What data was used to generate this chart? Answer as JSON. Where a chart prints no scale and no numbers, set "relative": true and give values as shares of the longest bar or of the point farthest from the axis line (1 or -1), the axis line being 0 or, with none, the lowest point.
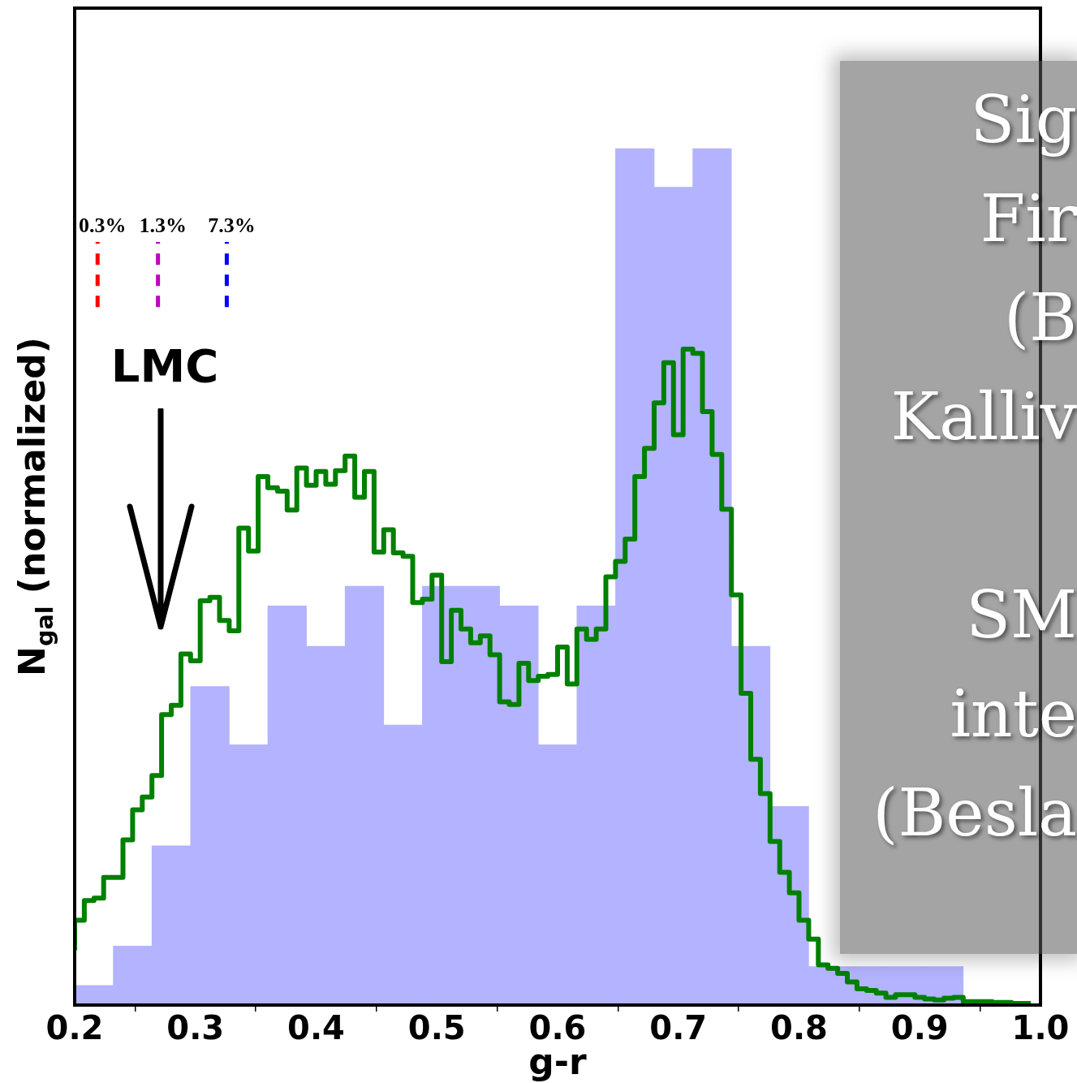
{
  "chart_data": {
    "type": "histogram",
    "xlabel": "g-r",
    "ylabel": "N$_{gal}$ (normalized)",
    "relative": true,
    "xlim": [
      0.2,
      1
    ],
    "xticks": [
      0.2,
      0.3,
      0.4,
      0.5,
      0.6,
      0.7,
      0.8,
      0.9,
      {
        "value": 1,
        "label": "1.0"
      }
    ],
    "bins": [
      0.2,
      0.232,
      0.264,
      0.296,
      0.328,
      0.36,
      0.392,
      0.424,
      0.456,
      0.488,
      0.52,
      0.552,
      0.584,
      0.616,
      0.648,
      0.68,
      0.712,
      0.744,
      0.776,
      0.808,
      0.84,
      0.872,
      0.904,
      0.936
    ],
    "series": [
      {
        "color": "#b3b3ff",
        "values": [
          0.023,
          0.069,
          0.186,
          0.372,
          0.304,
          0.466,
          0.419,
          0.489,
          0.327,
          0.489,
          0.489,
          0.466,
          0.304,
          0.466,
          1,
          0.955,
          1,
          0.419,
          0.232,
          0.045,
          0.045,
          0.045,
          0.045
        ]
      },
      {
        "type": "step",
        "color": "#008000",
        "x": [
          0.2,
          0.208,
          0.216,
          0.224,
          0.232,
          0.24,
          0.248,
          0.256,
          0.264,
          0.272,
          0.28,
          0.288,
          0.296,
          0.304,
          0.312,
          0.32,
          0.328,
          0.336,
          0.344,
          0.352,
          0.36,
          0.368,
          0.376,
          0.384,
          0.392,
          0.4,
          0.408,
          0.416,
          0.424,
          0.432,
          0.44,
          0.448,
          0.456,
          0.464,
          0.472,
          0.48,
          0.488,
          0.496,
          0.504,
          0.512,
          0.52,
          0.528,
          0.536,
          0.544,
          0.552,
          0.56,
          0.568,
          0.576,
          0.584,
          0.592,
          0.6,
          0.608,
          0.616,
          0.624,
          0.632,
          0.64,
          0.648,
          0.656,
          0.664,
          0.672,
          0.68,
          0.688,
          0.696,
          0.704,
          0.712,
          0.72,
          0.728,
          0.736,
          0.744,
          0.752,
          0.76,
          0.768,
          0.776,
          0.784,
          0.792,
          0.8,
          0.808,
          0.816,
          0.824,
          0.832,
          0.84,
          0.848,
          0.856,
          0.864,
          0.872,
          0.88,
          0.888,
          0.896,
          0.904,
          0.912,
          0.92,
          0.928,
          0.936,
          0.944,
          0.952,
          0.96,
          0.968,
          0.976,
          0.984,
          0.992
        ],
        "values": [
          0.064,
          0.099,
          0.122,
          0.125,
          0.149,
          0.149,
          0.193,
          0.228,
          0.243,
          0.268,
          0.339,
          0.35,
          0.41,
          0.402,
          0.472,
          0.476,
          0.449,
          0.437,
          0.557,
          0.53,
          0.617,
          0.604,
          0.6,
          0.578,
          0.627,
          0.607,
          0.623,
          0.608,
          0.624,
          0.641,
          0.593,
          0.623,
          0.529,
          0.555,
          0.528,
          0.524,
          0.47,
          0.474,
          0.502,
          0.401,
          0.461,
          0.439,
          0.423,
          0.431,
          0.409,
          0.354,
          0.351,
          0.399,
          0.379,
          0.384,
          0.386,
          0.418,
          0.375,
          0.439,
          0.427,
          0.439,
          0.5,
          0.518,
          0.544,
          0.617,
          0.65,
          0.703,
          0.75,
          0.666,
          0.766,
          0.761,
          0.693,
          0.643,
          0.579,
          0.479,
          0.364,
          0.287,
          0.247,
          0.191,
          0.155,
          0.131,
          0.099,
          0.077,
          0.047,
          0.043,
          0.037,
          0.027,
          0.019,
          0.017,
          0.014,
          0.009,
          0.012,
          0.012,
          0.009,
          0.007,
          0.006,
          0.008,
          0.009,
          0.004,
          0.004,
          0.004,
          0.003,
          0.003,
          0.002,
          0.002
        ]
      },
      {
        "type": "line",
        "name": "0.3%",
        "color": "#ff0000",
        "line_style": "dashed",
        "x": [
          0.219,
          0.219
        ],
        "values": [
          0.815,
          0.891
        ]
      },
      {
        "type": "line",
        "name": "1.3%",
        "color": "#bf00bf",
        "line_style": "dashed",
        "x": [
          0.269,
          0.269
        ],
        "values": [
          0.815,
          0.891
        ]
      },
      {
        "type": "line",
        "name": "7.3%",
        "color": "#0000ff",
        "line_style": "dashed",
        "x": [
          0.326,
          0.326
        ],
        "values": [
          0.815,
          0.891
        ]
      }
    ],
    "annotations": [
      "LMC",
      "Sig",
      "Fir",
      "(B",
      "Kalliv",
      "SM",
      "inte",
      "(Besla"
    ]
  }
}
